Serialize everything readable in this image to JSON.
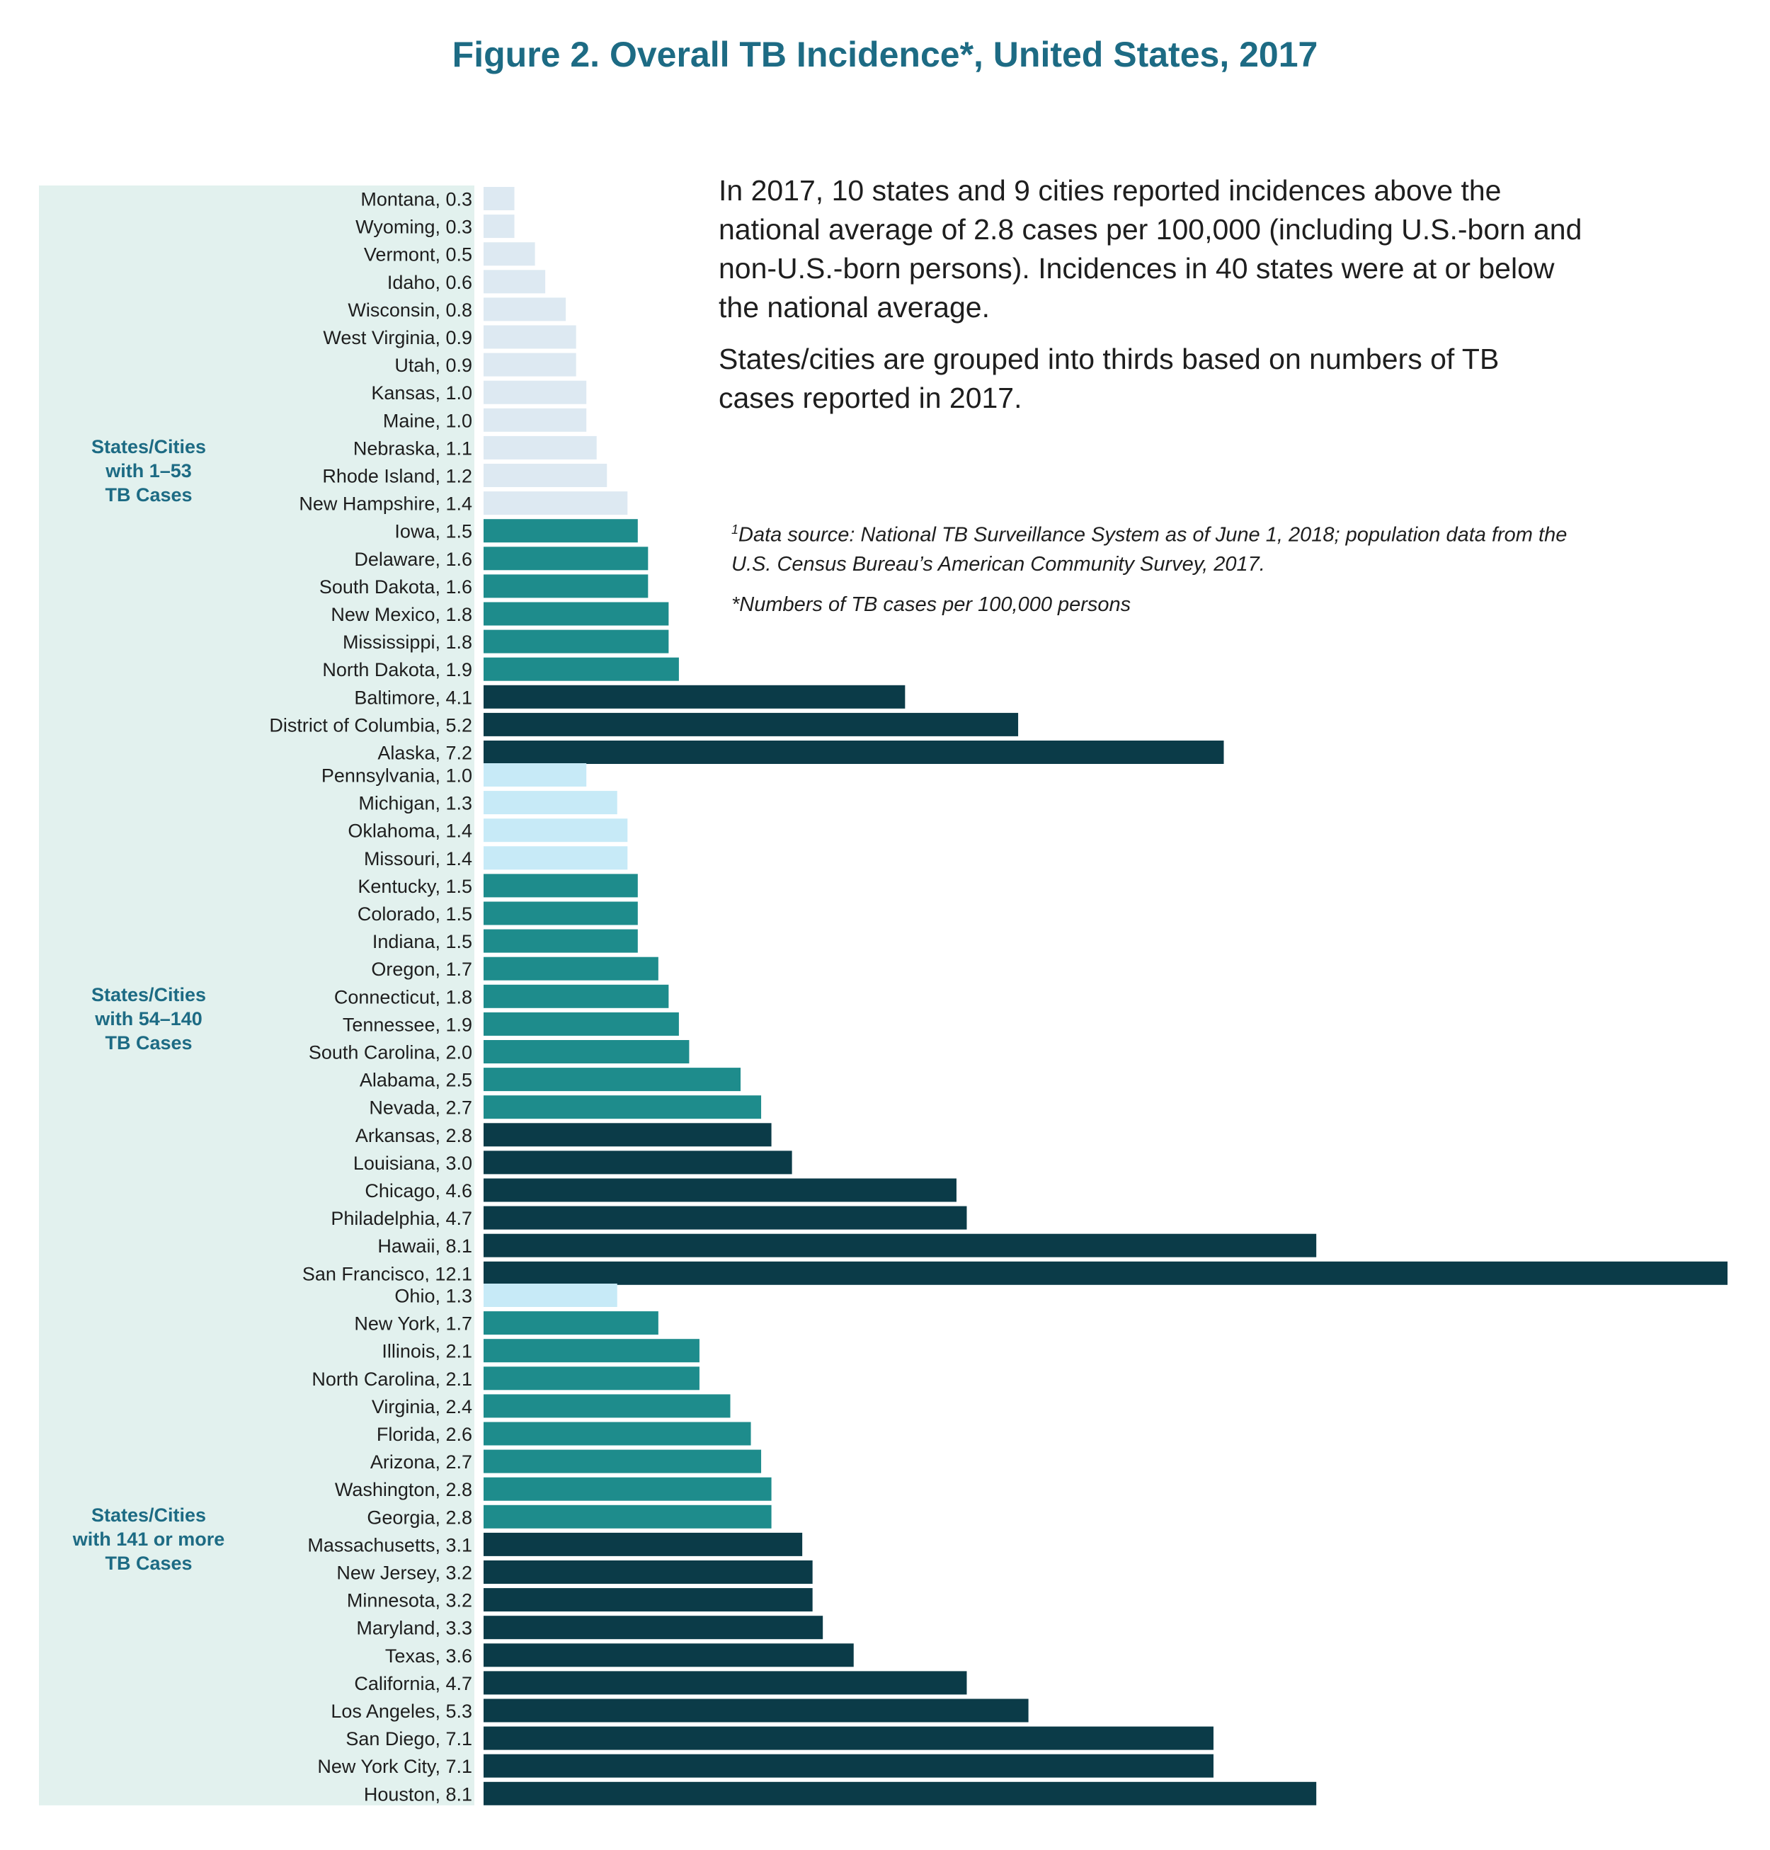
{
  "title": "Figure 2. Overall TB Incidence*, United States, 2017",
  "summary": {
    "paragraphs": [
      "In 2017, 10 states and 9 cities reported incidences above the national average of 2.8 cases per 100,000 (including U.S.-born and non-U.S.-born persons). Incidences in 40 states were at or below the national average.",
      "States/cities are grouped into thirds based on numbers of TB cases reported in 2017."
    ]
  },
  "notes": {
    "source_marker": "1",
    "source": "Data source: National TB Surveillance System as of June 1, 2018; population data from the U.S. Census Bureau’s American Community Survey, 2017.",
    "units": "*Numbers of TB cases per 100,000 persons"
  },
  "colors": {
    "panel_bg": "#e2f1ee",
    "very_light": "#dde9f2",
    "light": "#c7eaf7",
    "medium": "#1e8c8c",
    "dark": "#0b3b48"
  },
  "chart_data": {
    "type": "bar",
    "orientation": "horizontal",
    "title": "Figure 2. Overall TB Incidence*, United States, 2017",
    "groups": [
      {
        "label_lines": [
          "States/Cities",
          "with 1–53",
          "TB Cases"
        ],
        "bars": [
          {
            "name": "Montana",
            "value": 0.3,
            "shade": "very_light"
          },
          {
            "name": "Wyoming",
            "value": 0.3,
            "shade": "very_light"
          },
          {
            "name": "Vermont",
            "value": 0.5,
            "shade": "very_light"
          },
          {
            "name": "Idaho",
            "value": 0.6,
            "shade": "very_light"
          },
          {
            "name": "Wisconsin",
            "value": 0.8,
            "shade": "very_light"
          },
          {
            "name": "West Virginia",
            "value": 0.9,
            "shade": "very_light"
          },
          {
            "name": "Utah",
            "value": 0.9,
            "shade": "very_light"
          },
          {
            "name": "Kansas",
            "value": 1.0,
            "shade": "very_light"
          },
          {
            "name": "Maine",
            "value": 1.0,
            "shade": "very_light"
          },
          {
            "name": "Nebraska",
            "value": 1.1,
            "shade": "very_light"
          },
          {
            "name": "Rhode Island",
            "value": 1.2,
            "shade": "very_light"
          },
          {
            "name": "New Hampshire",
            "value": 1.4,
            "shade": "very_light"
          },
          {
            "name": "Iowa",
            "value": 1.5,
            "shade": "medium"
          },
          {
            "name": "Delaware",
            "value": 1.6,
            "shade": "medium"
          },
          {
            "name": "South Dakota",
            "value": 1.6,
            "shade": "medium"
          },
          {
            "name": "New Mexico",
            "value": 1.8,
            "shade": "medium"
          },
          {
            "name": "Mississippi",
            "value": 1.8,
            "shade": "medium"
          },
          {
            "name": "North Dakota",
            "value": 1.9,
            "shade": "medium"
          },
          {
            "name": "Baltimore",
            "value": 4.1,
            "shade": "dark"
          },
          {
            "name": "District of Columbia",
            "value": 5.2,
            "shade": "dark"
          },
          {
            "name": "Alaska",
            "value": 7.2,
            "shade": "dark"
          }
        ]
      },
      {
        "label_lines": [
          "States/Cities",
          "with 54–140",
          "TB Cases"
        ],
        "bars": [
          {
            "name": "Pennsylvania",
            "value": 1.0,
            "shade": "light"
          },
          {
            "name": "Michigan",
            "value": 1.3,
            "shade": "light"
          },
          {
            "name": "Oklahoma",
            "value": 1.4,
            "shade": "light"
          },
          {
            "name": "Missouri",
            "value": 1.4,
            "shade": "light"
          },
          {
            "name": "Kentucky",
            "value": 1.5,
            "shade": "medium"
          },
          {
            "name": "Colorado",
            "value": 1.5,
            "shade": "medium"
          },
          {
            "name": "Indiana",
            "value": 1.5,
            "shade": "medium"
          },
          {
            "name": "Oregon",
            "value": 1.7,
            "shade": "medium"
          },
          {
            "name": "Connecticut",
            "value": 1.8,
            "shade": "medium"
          },
          {
            "name": "Tennessee",
            "value": 1.9,
            "shade": "medium"
          },
          {
            "name": "South Carolina",
            "value": 2.0,
            "shade": "medium"
          },
          {
            "name": "Alabama",
            "value": 2.5,
            "shade": "medium"
          },
          {
            "name": "Nevada",
            "value": 2.7,
            "shade": "medium"
          },
          {
            "name": "Arkansas",
            "value": 2.8,
            "shade": "dark"
          },
          {
            "name": "Louisiana",
            "value": 3.0,
            "shade": "dark"
          },
          {
            "name": "Chicago",
            "value": 4.6,
            "shade": "dark"
          },
          {
            "name": "Philadelphia",
            "value": 4.7,
            "shade": "dark"
          },
          {
            "name": "Hawaii",
            "value": 8.1,
            "shade": "dark"
          },
          {
            "name": "San Francisco",
            "value": 12.1,
            "shade": "dark"
          }
        ]
      },
      {
        "label_lines": [
          "States/Cities",
          "with 141 or more",
          "TB Cases"
        ],
        "bars": [
          {
            "name": "Ohio",
            "value": 1.3,
            "shade": "light"
          },
          {
            "name": "New York",
            "value": 1.7,
            "shade": "medium"
          },
          {
            "name": "Illinois",
            "value": 2.1,
            "shade": "medium"
          },
          {
            "name": "North Carolina",
            "value": 2.1,
            "shade": "medium"
          },
          {
            "name": "Virginia",
            "value": 2.4,
            "shade": "medium"
          },
          {
            "name": "Florida",
            "value": 2.6,
            "shade": "medium"
          },
          {
            "name": "Arizona",
            "value": 2.7,
            "shade": "medium"
          },
          {
            "name": "Washington",
            "value": 2.8,
            "shade": "medium"
          },
          {
            "name": "Georgia",
            "value": 2.8,
            "shade": "medium"
          },
          {
            "name": "Massachusetts",
            "value": 3.1,
            "shade": "dark"
          },
          {
            "name": "New Jersey",
            "value": 3.2,
            "shade": "dark"
          },
          {
            "name": "Minnesota",
            "value": 3.2,
            "shade": "dark"
          },
          {
            "name": "Maryland",
            "value": 3.3,
            "shade": "dark"
          },
          {
            "name": "Texas",
            "value": 3.6,
            "shade": "dark"
          },
          {
            "name": "California",
            "value": 4.7,
            "shade": "dark"
          },
          {
            "name": "Los Angeles",
            "value": 5.3,
            "shade": "dark"
          },
          {
            "name": "San Diego",
            "value": 7.1,
            "shade": "dark"
          },
          {
            "name": "New York City",
            "value": 7.1,
            "shade": "dark"
          },
          {
            "name": "Houston",
            "value": 8.1,
            "shade": "dark"
          }
        ]
      }
    ],
    "xlim": [
      0,
      12.1
    ],
    "grid": false,
    "legend": "none"
  }
}
